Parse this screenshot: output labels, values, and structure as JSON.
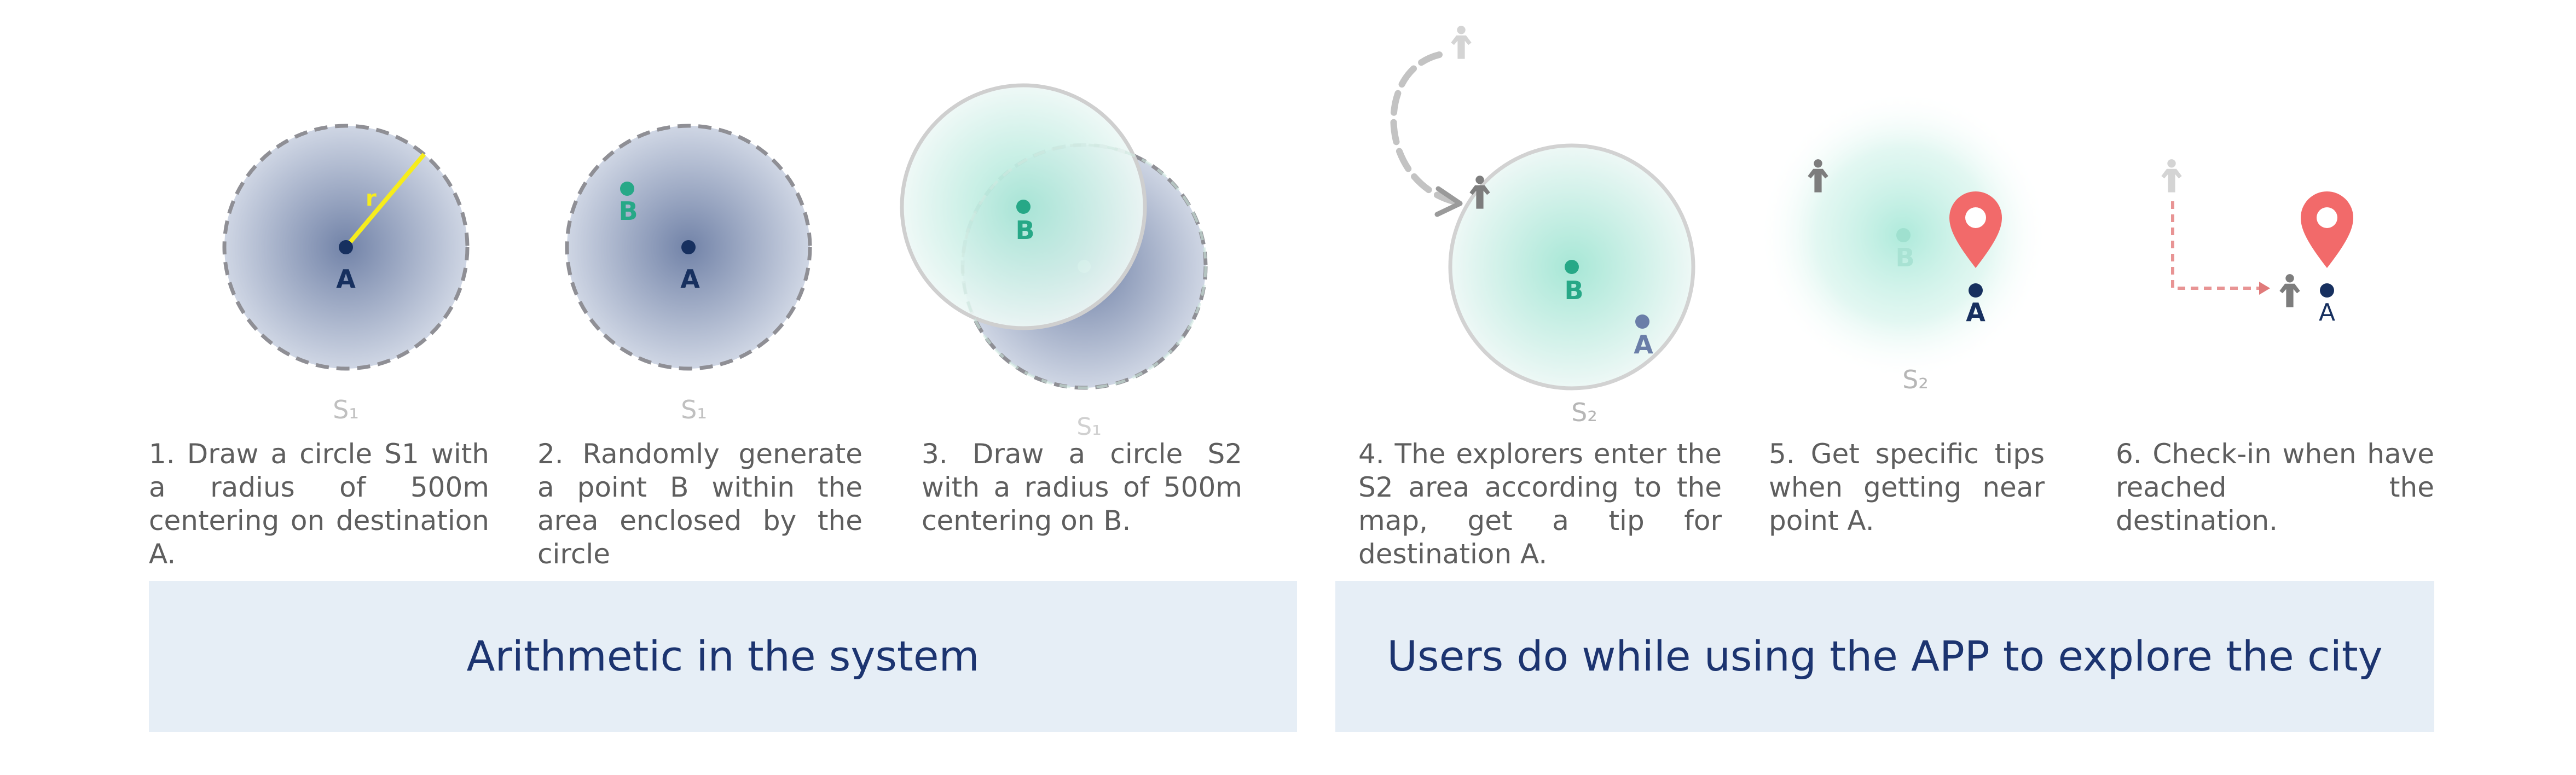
{
  "steps": [
    {
      "text": "1. Draw a circle S1 with a radius of 500m centering on destination A."
    },
    {
      "text": "2. Randomly generate a point B within the area enclosed by the circle"
    },
    {
      "text": "3. Draw a circle S2 with a radius of 500m centering on B."
    },
    {
      "text": "4. The explorers enter the S2 area according to the map, get a tip for destination A."
    },
    {
      "text": "5. Get specific tips when getting near point A."
    },
    {
      "text": "6. Check-in when have reached the destination."
    }
  ],
  "labels": {
    "point_a": "A",
    "point_b": "B",
    "radius": "r",
    "s1": "S₁",
    "s2": "S₂"
  },
  "banners": {
    "system": "Arithmetic in the system",
    "users": "Users do while using the APP to explore the city"
  },
  "colors": {
    "s1_fill": "#95a4c0",
    "s2_fill": "#9be3d2",
    "point_a": "#17305f",
    "point_b": "#27a887",
    "radius_line": "#f6ec1c",
    "pin": "#f26a6a",
    "banner_bg": "#e6eef6",
    "banner_text": "#1c3470"
  },
  "icons": [
    "person-icon",
    "location-pin-icon",
    "dashed-arrow-icon"
  ]
}
